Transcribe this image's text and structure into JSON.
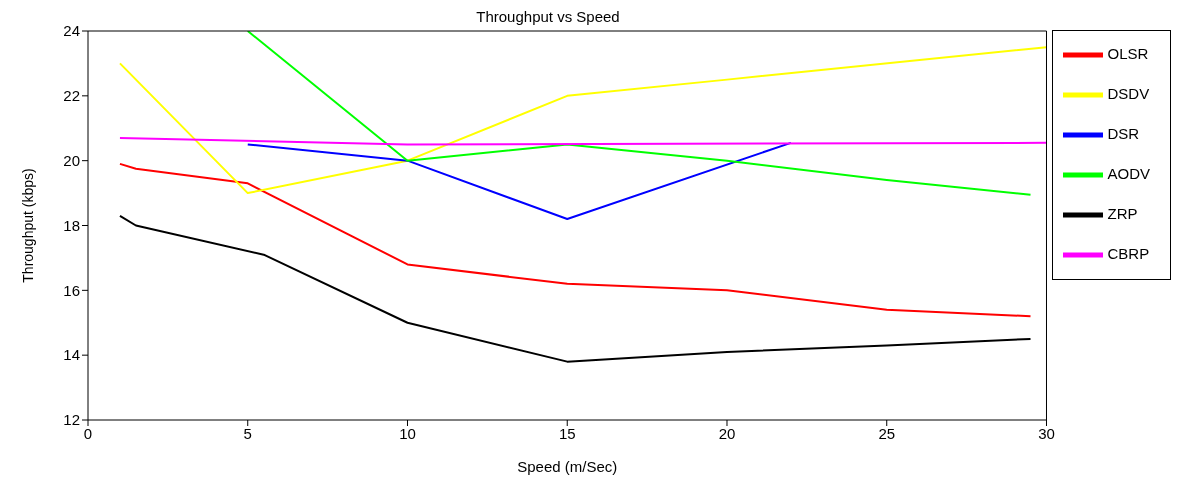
{
  "chart_data": {
    "type": "line",
    "title": "Throughput vs Speed",
    "xlabel": "Speed (m/Sec)",
    "ylabel": "Throughput (kbps)",
    "xlim": [
      0,
      30
    ],
    "xticks": [
      0,
      5,
      10,
      15,
      20,
      25,
      30
    ],
    "ylim": [
      12,
      24
    ],
    "yticks": [
      12,
      14,
      16,
      18,
      20,
      22,
      24
    ],
    "grid": false,
    "legend": "top right",
    "marker": "none",
    "line_style": "solid",
    "series": [
      {
        "name": "OLSR",
        "color": "#ff0000",
        "x": [
          1,
          1.5,
          5,
          10,
          15,
          20,
          25,
          29.5
        ],
        "values": [
          19.9,
          19.75,
          19.3,
          16.8,
          16.2,
          16,
          15.4,
          15.2
        ]
      },
      {
        "name": "DSDV",
        "color": "#ffff00",
        "x": [
          1,
          5,
          10,
          15,
          20,
          30
        ],
        "values": [
          23,
          19,
          20,
          22,
          22.5,
          23.5
        ]
      },
      {
        "name": "DSR",
        "color": "#0000ff",
        "x": [
          5,
          10,
          15,
          22
        ],
        "values": [
          20.5,
          20,
          18.2,
          20.55
        ]
      },
      {
        "name": "AODV",
        "color": "#00ff00",
        "x": [
          5,
          10,
          15,
          20,
          25,
          29.5
        ],
        "values": [
          24,
          20,
          20.5,
          20,
          19.4,
          18.95
        ]
      },
      {
        "name": "ZRP",
        "color": "#000000",
        "x": [
          1,
          1.5,
          5.5,
          10,
          15,
          20,
          25,
          29.5
        ],
        "values": [
          18.3,
          18,
          17.1,
          15,
          13.8,
          14.1,
          14.3,
          14.5
        ]
      },
      {
        "name": "CBRP",
        "color": "#ff00ff",
        "x": [
          1,
          10,
          30
        ],
        "values": [
          20.7,
          20.5,
          20.55
        ]
      }
    ]
  }
}
